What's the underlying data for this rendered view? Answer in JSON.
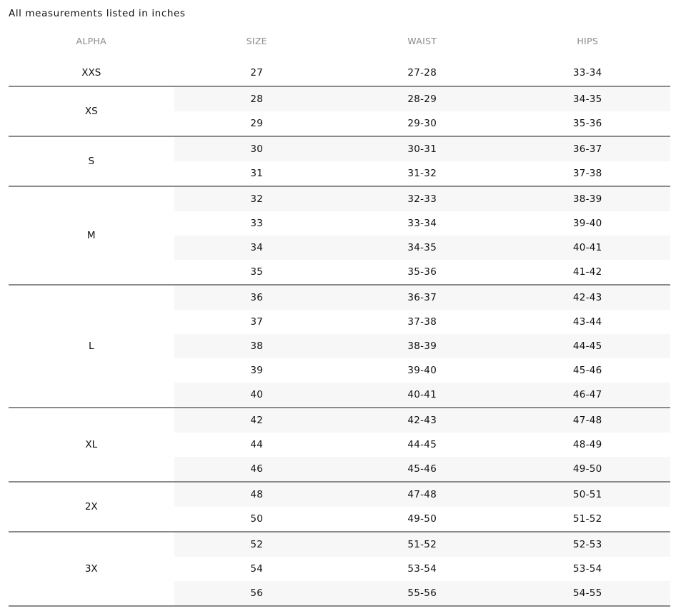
{
  "note": "All measurements listed in inches",
  "headers": {
    "alpha": "ALPHA",
    "size": "SIZE",
    "waist": "WAIST",
    "hips": "HIPS"
  },
  "groups": [
    {
      "alpha": "XXS",
      "rows": [
        [
          "27",
          "27-28",
          "33-34"
        ]
      ]
    },
    {
      "alpha": "XS",
      "rows": [
        [
          "28",
          "28-29",
          "34-35"
        ],
        [
          "29",
          "29-30",
          "35-36"
        ]
      ]
    },
    {
      "alpha": "S",
      "rows": [
        [
          "30",
          "30-31",
          "36-37"
        ],
        [
          "31",
          "31-32",
          "37-38"
        ]
      ]
    },
    {
      "alpha": "M",
      "rows": [
        [
          "32",
          "32-33",
          "38-39"
        ],
        [
          "33",
          "33-34",
          "39-40"
        ],
        [
          "34",
          "34-35",
          "40-41"
        ],
        [
          "35",
          "35-36",
          "41-42"
        ]
      ]
    },
    {
      "alpha": "L",
      "rows": [
        [
          "36",
          "36-37",
          "42-43"
        ],
        [
          "37",
          "37-38",
          "43-44"
        ],
        [
          "38",
          "38-39",
          "44-45"
        ],
        [
          "39",
          "39-40",
          "45-46"
        ],
        [
          "40",
          "40-41",
          "46-47"
        ]
      ]
    },
    {
      "alpha": "XL",
      "rows": [
        [
          "42",
          "42-43",
          "47-48"
        ],
        [
          "44",
          "44-45",
          "48-49"
        ],
        [
          "46",
          "45-46",
          "49-50"
        ]
      ]
    },
    {
      "alpha": "2X",
      "rows": [
        [
          "48",
          "47-48",
          "50-51"
        ],
        [
          "50",
          "49-50",
          "51-52"
        ]
      ]
    },
    {
      "alpha": "3X",
      "rows": [
        [
          "52",
          "51-52",
          "52-53"
        ],
        [
          "54",
          "53-54",
          "53-54"
        ],
        [
          "56",
          "55-56",
          "54-55"
        ]
      ]
    }
  ]
}
